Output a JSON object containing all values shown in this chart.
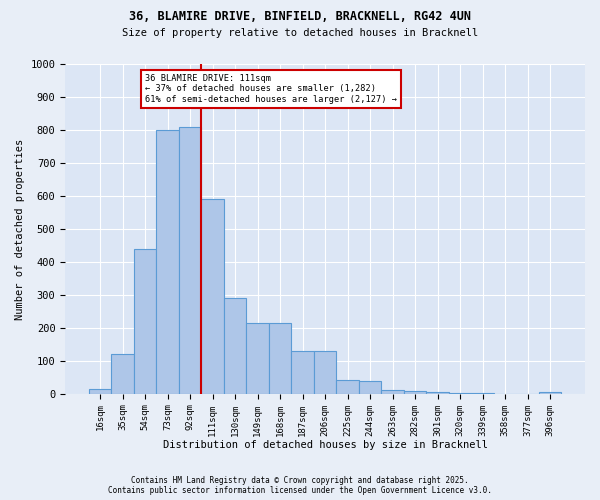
{
  "title1": "36, BLAMIRE DRIVE, BINFIELD, BRACKNELL, RG42 4UN",
  "title2": "Size of property relative to detached houses in Bracknell",
  "xlabel": "Distribution of detached houses by size in Bracknell",
  "ylabel": "Number of detached properties",
  "bar_labels": [
    "16sqm",
    "35sqm",
    "54sqm",
    "73sqm",
    "92sqm",
    "111sqm",
    "130sqm",
    "149sqm",
    "168sqm",
    "187sqm",
    "206sqm",
    "225sqm",
    "244sqm",
    "263sqm",
    "282sqm",
    "301sqm",
    "320sqm",
    "339sqm",
    "358sqm",
    "377sqm",
    "396sqm"
  ],
  "bar_values": [
    15,
    120,
    440,
    800,
    810,
    590,
    290,
    215,
    215,
    130,
    130,
    42,
    38,
    13,
    10,
    7,
    4,
    2,
    1,
    1,
    5
  ],
  "bar_color": "#aec6e8",
  "bar_edge_color": "#5b9bd5",
  "property_line_idx": 4.5,
  "annotation_title": "36 BLAMIRE DRIVE: 111sqm",
  "annotation_line1": "← 37% of detached houses are smaller (1,282)",
  "annotation_line2": "61% of semi-detached houses are larger (2,127) →",
  "annotation_box_color": "#ffffff",
  "annotation_box_edge": "#cc0000",
  "vline_color": "#cc0000",
  "background_color": "#e8eef7",
  "plot_bg_color": "#dce6f5",
  "grid_color": "#ffffff",
  "ylim": [
    0,
    1000
  ],
  "yticks": [
    0,
    100,
    200,
    300,
    400,
    500,
    600,
    700,
    800,
    900,
    1000
  ],
  "footer1": "Contains HM Land Registry data © Crown copyright and database right 2025.",
  "footer2": "Contains public sector information licensed under the Open Government Licence v3.0."
}
